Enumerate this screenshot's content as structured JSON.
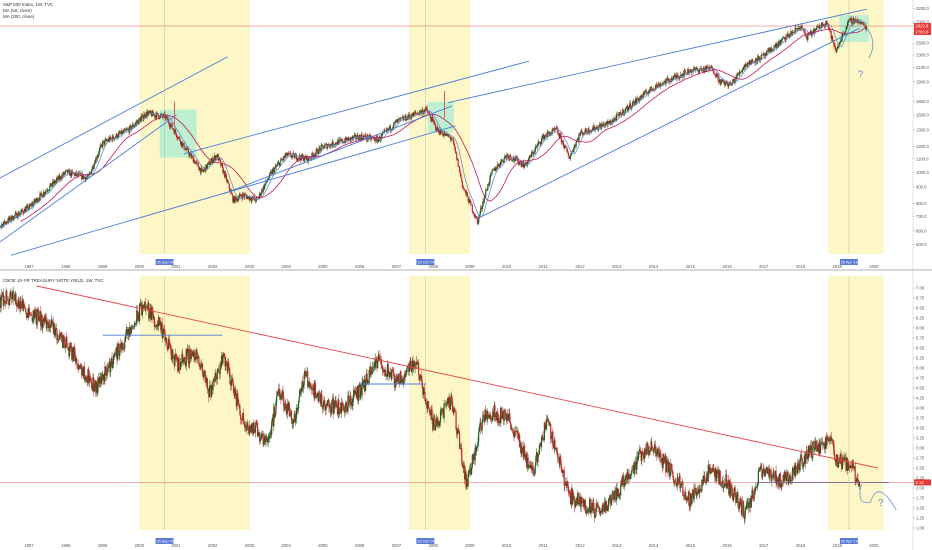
{
  "colors": {
    "highlight": "#fdf6c7",
    "box": "#a8ecd4",
    "trend_blue": "#4a7fd6",
    "trend_red": "#e8454a",
    "ma_short": "#6a8fd8",
    "ma_long": "#c2185b",
    "price_label": "#e53935",
    "date_label": "#5a7bd6",
    "up_candle": "#1b5e20",
    "down_candle": "#c62828"
  },
  "chart_data": [
    {
      "type": "candlestick",
      "title": "S&P 500 Index, 1W, TVC",
      "legend": [
        "S&P 500 Index, 1W, TVC",
        "MA (50, close)",
        "MA (200, close)"
      ],
      "x_ticks": [
        "1997",
        "1998",
        "1999",
        "2000",
        "2001",
        "2002",
        "2003",
        "2004",
        "2005",
        "2006",
        "2007",
        "2008",
        "2009",
        "2010",
        "2011",
        "2012",
        "2013",
        "2014",
        "2015",
        "2016",
        "2017",
        "2018",
        "2019",
        "2020"
      ],
      "y_scale": "log",
      "y_ticks": [
        "3200.0",
        "2900.0",
        "2700.0",
        "2500.0",
        "2300.0",
        "2100.0",
        "1900.0",
        "1650.0",
        "1500.0",
        "1350.0",
        "1200.0",
        "1100.0",
        "1000.0",
        "900.0",
        "800.0",
        "730.0",
        "660.0",
        "600.0"
      ],
      "ylim": [
        560,
        3300
      ],
      "last_price_label": "2780.0",
      "second_price_label": "2822.8",
      "cursor_date_labels": [
        "05 Sep '00",
        "15 Oct '07",
        "25 Apr '19"
      ],
      "highlight_ranges": [
        [
          "2000-01",
          "2002-12"
        ],
        [
          "2007-05",
          "2008-12"
        ],
        [
          "2018-10",
          "2020-03"
        ]
      ],
      "annotation": "?",
      "anchors": [
        {
          "x": 1996.0,
          "y": 660
        },
        {
          "x": 1997.0,
          "y": 780
        },
        {
          "x": 1998.0,
          "y": 1000
        },
        {
          "x": 1998.6,
          "y": 960
        },
        {
          "x": 1999.0,
          "y": 1230
        },
        {
          "x": 1999.7,
          "y": 1350
        },
        {
          "x": 2000.2,
          "y": 1520
        },
        {
          "x": 2000.7,
          "y": 1480
        },
        {
          "x": 2001.2,
          "y": 1200
        },
        {
          "x": 2001.7,
          "y": 1000
        },
        {
          "x": 2002.1,
          "y": 1130
        },
        {
          "x": 2002.55,
          "y": 820
        },
        {
          "x": 2002.8,
          "y": 850
        },
        {
          "x": 2003.2,
          "y": 820
        },
        {
          "x": 2003.6,
          "y": 1000
        },
        {
          "x": 2004.0,
          "y": 1130
        },
        {
          "x": 2004.6,
          "y": 1100
        },
        {
          "x": 2005.0,
          "y": 1200
        },
        {
          "x": 2006.0,
          "y": 1290
        },
        {
          "x": 2006.5,
          "y": 1260
        },
        {
          "x": 2007.0,
          "y": 1430
        },
        {
          "x": 2007.8,
          "y": 1560
        },
        {
          "x": 2008.1,
          "y": 1350
        },
        {
          "x": 2008.5,
          "y": 1270
        },
        {
          "x": 2008.8,
          "y": 900
        },
        {
          "x": 2009.2,
          "y": 700
        },
        {
          "x": 2009.6,
          "y": 1000
        },
        {
          "x": 2010.0,
          "y": 1130
        },
        {
          "x": 2010.5,
          "y": 1050
        },
        {
          "x": 2011.0,
          "y": 1290
        },
        {
          "x": 2011.35,
          "y": 1350
        },
        {
          "x": 2011.7,
          "y": 1110
        },
        {
          "x": 2012.0,
          "y": 1320
        },
        {
          "x": 2012.8,
          "y": 1420
        },
        {
          "x": 2013.0,
          "y": 1480
        },
        {
          "x": 2014.0,
          "y": 1830
        },
        {
          "x": 2015.0,
          "y": 2060
        },
        {
          "x": 2015.6,
          "y": 2090
        },
        {
          "x": 2015.8,
          "y": 1900
        },
        {
          "x": 2016.1,
          "y": 1860
        },
        {
          "x": 2016.5,
          "y": 2150
        },
        {
          "x": 2017.0,
          "y": 2280
        },
        {
          "x": 2018.0,
          "y": 2820
        },
        {
          "x": 2018.15,
          "y": 2600
        },
        {
          "x": 2018.7,
          "y": 2920
        },
        {
          "x": 2018.95,
          "y": 2350
        },
        {
          "x": 2019.3,
          "y": 2900
        },
        {
          "x": 2019.5,
          "y": 2950
        },
        {
          "x": 2019.7,
          "y": 2850
        },
        {
          "x": 2019.8,
          "y": 2780
        }
      ]
    },
    {
      "type": "candlestick",
      "title": "CBOE 10-YR TREASURY NOTE YIELD, 1W, TVC",
      "legend": [
        "CBOE 10-YR TREASURY NOTE YIELD, 1W, TVC"
      ],
      "x_ticks": [
        "1997",
        "1998",
        "1999",
        "2000",
        "2001",
        "2002",
        "2003",
        "2004",
        "2005",
        "2006",
        "2007",
        "2008",
        "2009",
        "2010",
        "2011",
        "2012",
        "2013",
        "2014",
        "2015",
        "2016",
        "2017",
        "2018",
        "2019",
        "2020"
      ],
      "y_ticks": [
        "7.00",
        "6.75",
        "6.50",
        "6.25",
        "6.00",
        "5.75",
        "5.50",
        "5.25",
        "5.00",
        "4.75",
        "4.50",
        "4.25",
        "4.00",
        "3.75",
        "3.50",
        "3.25",
        "3.00",
        "2.75",
        "2.50",
        "2.25",
        "2.00",
        "1.75",
        "1.50",
        "1.25",
        "1.00"
      ],
      "ylim": [
        0.95,
        7.2
      ],
      "last_price_label": "2.14",
      "cursor_date_labels": [
        "05 Sep '00",
        "15 Oct '07",
        "25 Apr '19"
      ],
      "highlight_ranges": [
        [
          "2000-01",
          "2002-12"
        ],
        [
          "2007-05",
          "2008-12"
        ],
        [
          "2018-10",
          "2020-03"
        ]
      ],
      "annotation": "?",
      "anchors": [
        {
          "x": 1996.0,
          "y": 6.6
        },
        {
          "x": 1996.5,
          "y": 6.8
        },
        {
          "x": 1997.0,
          "y": 6.4
        },
        {
          "x": 1997.5,
          "y": 6.1
        },
        {
          "x": 1998.0,
          "y": 5.6
        },
        {
          "x": 1998.8,
          "y": 4.5
        },
        {
          "x": 1999.2,
          "y": 5.1
        },
        {
          "x": 1999.8,
          "y": 6.0
        },
        {
          "x": 2000.1,
          "y": 6.6
        },
        {
          "x": 2000.5,
          "y": 6.1
        },
        {
          "x": 2001.0,
          "y": 5.1
        },
        {
          "x": 2001.5,
          "y": 5.4
        },
        {
          "x": 2001.9,
          "y": 4.4
        },
        {
          "x": 2002.3,
          "y": 5.3
        },
        {
          "x": 2002.8,
          "y": 3.7
        },
        {
          "x": 2003.5,
          "y": 3.2
        },
        {
          "x": 2003.8,
          "y": 4.4
        },
        {
          "x": 2004.2,
          "y": 3.7
        },
        {
          "x": 2004.5,
          "y": 4.8
        },
        {
          "x": 2005.0,
          "y": 4.1
        },
        {
          "x": 2005.5,
          "y": 4.0
        },
        {
          "x": 2006.0,
          "y": 4.4
        },
        {
          "x": 2006.5,
          "y": 5.2
        },
        {
          "x": 2007.0,
          "y": 4.6
        },
        {
          "x": 2007.5,
          "y": 5.2
        },
        {
          "x": 2008.0,
          "y": 3.6
        },
        {
          "x": 2008.5,
          "y": 4.2
        },
        {
          "x": 2008.9,
          "y": 2.1
        },
        {
          "x": 2009.4,
          "y": 3.9
        },
        {
          "x": 2010.0,
          "y": 3.8
        },
        {
          "x": 2010.7,
          "y": 2.4
        },
        {
          "x": 2011.1,
          "y": 3.7
        },
        {
          "x": 2011.7,
          "y": 1.8
        },
        {
          "x": 2012.5,
          "y": 1.4
        },
        {
          "x": 2013.0,
          "y": 1.9
        },
        {
          "x": 2013.7,
          "y": 2.9
        },
        {
          "x": 2014.0,
          "y": 3.0
        },
        {
          "x": 2015.0,
          "y": 1.7
        },
        {
          "x": 2015.5,
          "y": 2.4
        },
        {
          "x": 2016.0,
          "y": 2.1
        },
        {
          "x": 2016.5,
          "y": 1.36
        },
        {
          "x": 2016.9,
          "y": 2.4
        },
        {
          "x": 2017.5,
          "y": 2.2
        },
        {
          "x": 2017.8,
          "y": 2.4
        },
        {
          "x": 2018.0,
          "y": 2.7
        },
        {
          "x": 2018.4,
          "y": 3.0
        },
        {
          "x": 2018.8,
          "y": 3.2
        },
        {
          "x": 2019.0,
          "y": 2.7
        },
        {
          "x": 2019.4,
          "y": 2.5
        },
        {
          "x": 2019.6,
          "y": 2.14
        }
      ]
    }
  ]
}
